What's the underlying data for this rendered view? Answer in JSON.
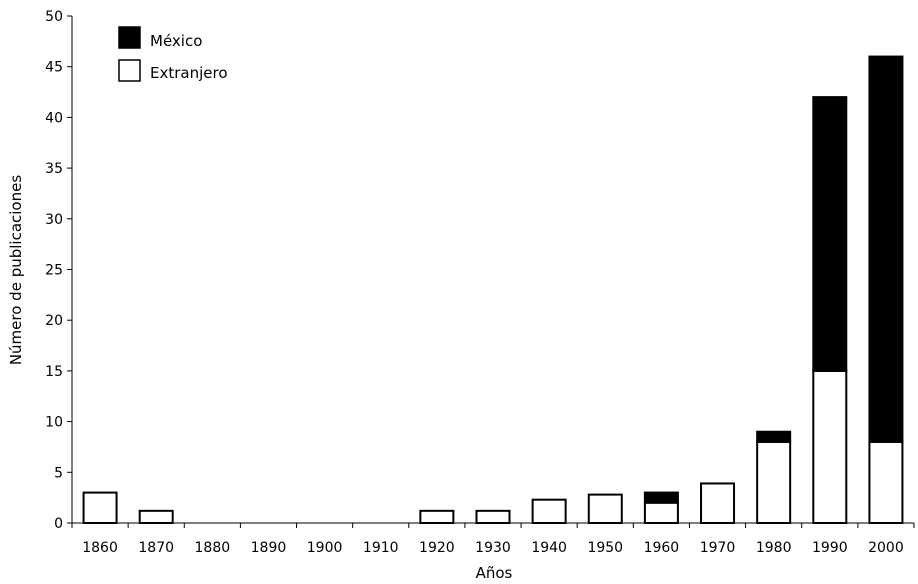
{
  "chart_data": {
    "type": "bar",
    "stacked": true,
    "xlabel": "Años",
    "ylabel": "Número de publicaciones",
    "ylim": [
      0,
      50
    ],
    "yticks": [
      0,
      5,
      10,
      15,
      20,
      25,
      30,
      35,
      40,
      45,
      50
    ],
    "categories": [
      "1860",
      "1870",
      "1880",
      "1890",
      "1900",
      "1910",
      "1920",
      "1930",
      "1940",
      "1950",
      "1960",
      "1970",
      "1980",
      "1990",
      "2000"
    ],
    "series": [
      {
        "name": "Extranjero",
        "color": "#ffffff",
        "values": [
          3,
          1.2,
          0,
          0,
          0,
          0,
          1.2,
          1.2,
          2.3,
          2.8,
          2,
          3.9,
          8,
          15,
          8
        ]
      },
      {
        "name": "México",
        "color": "#000000",
        "values": [
          0,
          0,
          0,
          0,
          0,
          0,
          0,
          0,
          0,
          0,
          1,
          0,
          1,
          27,
          38
        ]
      }
    ],
    "legend": {
      "position": "top-left",
      "entries": [
        "México",
        "Extranjero"
      ]
    },
    "grid": false
  }
}
